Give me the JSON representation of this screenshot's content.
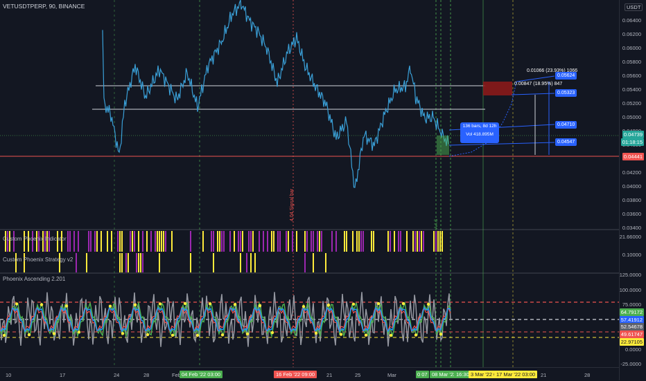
{
  "header": {
    "title": "VETUSDTPERP, 90, BINANCE"
  },
  "currency_button": "USDT",
  "colors": {
    "bg": "#131722",
    "candle_line": "#3aa0d8",
    "up": "#26a69a",
    "down": "#ef5350",
    "purple": "#9c27b0",
    "yellow": "#ffeb3b",
    "green": "#4caf50",
    "blue": "#2962ff",
    "grey": "#787b86"
  },
  "price_axis": {
    "ticks": [
      "0.06400",
      "0.06200",
      "0.06000",
      "0.05800",
      "0.05600",
      "0.05400",
      "0.05200",
      "0.05000",
      "0.04800",
      "0.04600",
      "0.04400",
      "0.04200",
      "0.04000",
      "0.03800",
      "0.03600",
      "0.03400"
    ],
    "current_price": "0.04739",
    "countdown": "01:18:15",
    "red_level": "0.04441"
  },
  "projection": {
    "line1": "0.01066 (23.93%) 1066",
    "line2": "0.00847 (18.95%) 847",
    "bars_line": "136 bars, 8d 12h",
    "vol_line": "Vol 418.895M",
    "levels": [
      "0.05624",
      "0.05323",
      "0.04710",
      "0.04547"
    ]
  },
  "panes": {
    "indicator1": "Custom Phoenix Indicator",
    "indicator2": "Custom Phoenix Strategy v2",
    "indicator3": "Phoenix Ascending 2.201",
    "ind_axis": [
      "21.66000",
      "0.10000"
    ],
    "osc_ticks": [
      "125.0000",
      "100.0000",
      "75.0000",
      "50.0000",
      "25.0000",
      "0.0000",
      "-25.0000"
    ],
    "osc_tags": [
      "64.79172",
      "57.41912",
      "52.54678",
      "49.61747",
      "22.97105"
    ],
    "vertical_note_left": "4.04 Signal bar",
    "vertical_note_right": "A A S"
  },
  "time_axis": {
    "ticks": [
      "10",
      "17",
      "24",
      "28",
      "Feb",
      "21",
      "25",
      "Mar",
      "21",
      "28"
    ],
    "labels": [
      "04 Feb '22   03:00",
      "16 Feb '22   09:00",
      "0 07",
      "08 Mar '22",
      "16:30",
      "3 Mar '22   03",
      "17 Mar '22   03:00"
    ]
  }
}
